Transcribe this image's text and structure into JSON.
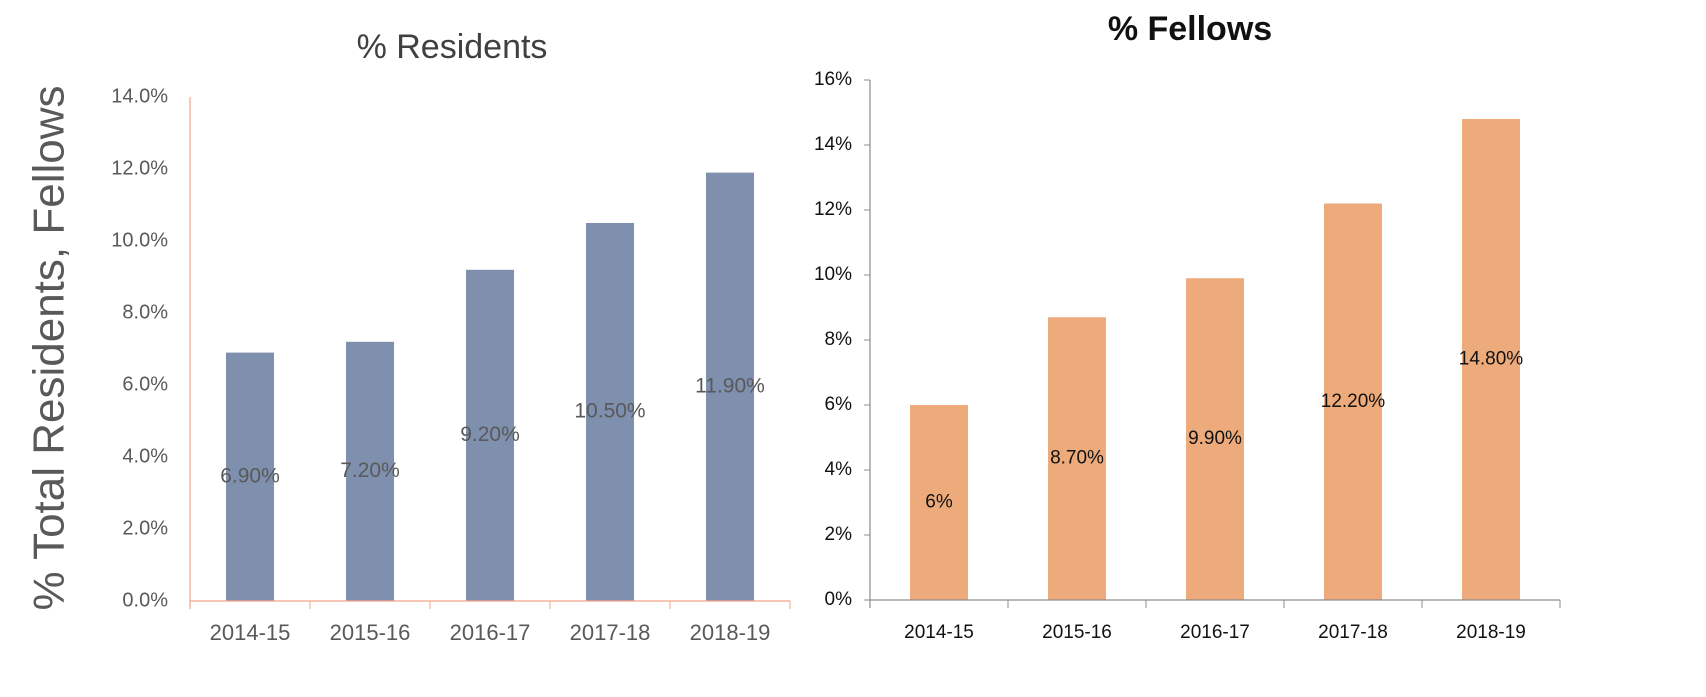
{
  "shared_ylabel": "% Total Residents, Fellows",
  "chart_data": [
    {
      "type": "bar",
      "title": "% Residents",
      "categories": [
        "2014-15",
        "2015-16",
        "2016-17",
        "2017-18",
        "2018-19"
      ],
      "values": [
        6.9,
        7.2,
        9.2,
        10.5,
        11.9
      ],
      "data_labels": [
        "6.90%",
        "7.20%",
        "9.20%",
        "10.50%",
        "11.90%"
      ],
      "ylim": [
        0,
        14
      ],
      "yticks": [
        0,
        2,
        4,
        6,
        8,
        10,
        12,
        14
      ],
      "ytick_labels": [
        "0.0%",
        "2.0%",
        "4.0%",
        "6.0%",
        "8.0%",
        "10.0%",
        "12.0%",
        "14.0%"
      ],
      "xlabel": "",
      "ylabel": "",
      "grid": false,
      "colors": {
        "bar": "#7f8fae",
        "axis": "#f0a58a",
        "label": "#595959"
      }
    },
    {
      "type": "bar",
      "title": "% Fellows",
      "categories": [
        "2014-15",
        "2015-16",
        "2016-17",
        "2017-18",
        "2018-19"
      ],
      "values": [
        6.0,
        8.7,
        9.9,
        12.2,
        14.8
      ],
      "data_labels": [
        "6%",
        "8.70%",
        "9.90%",
        "12.20%",
        "14.80%"
      ],
      "ylim": [
        0,
        16
      ],
      "yticks": [
        0,
        2,
        4,
        6,
        8,
        10,
        12,
        14,
        16
      ],
      "ytick_labels": [
        "0%",
        "2%",
        "4%",
        "6%",
        "8%",
        "10%",
        "12%",
        "14%",
        "16%"
      ],
      "xlabel": "",
      "ylabel": "",
      "grid": false,
      "colors": {
        "bar": "#edaa7b",
        "axis": "#8c8c8c",
        "label": "#111111"
      }
    }
  ]
}
